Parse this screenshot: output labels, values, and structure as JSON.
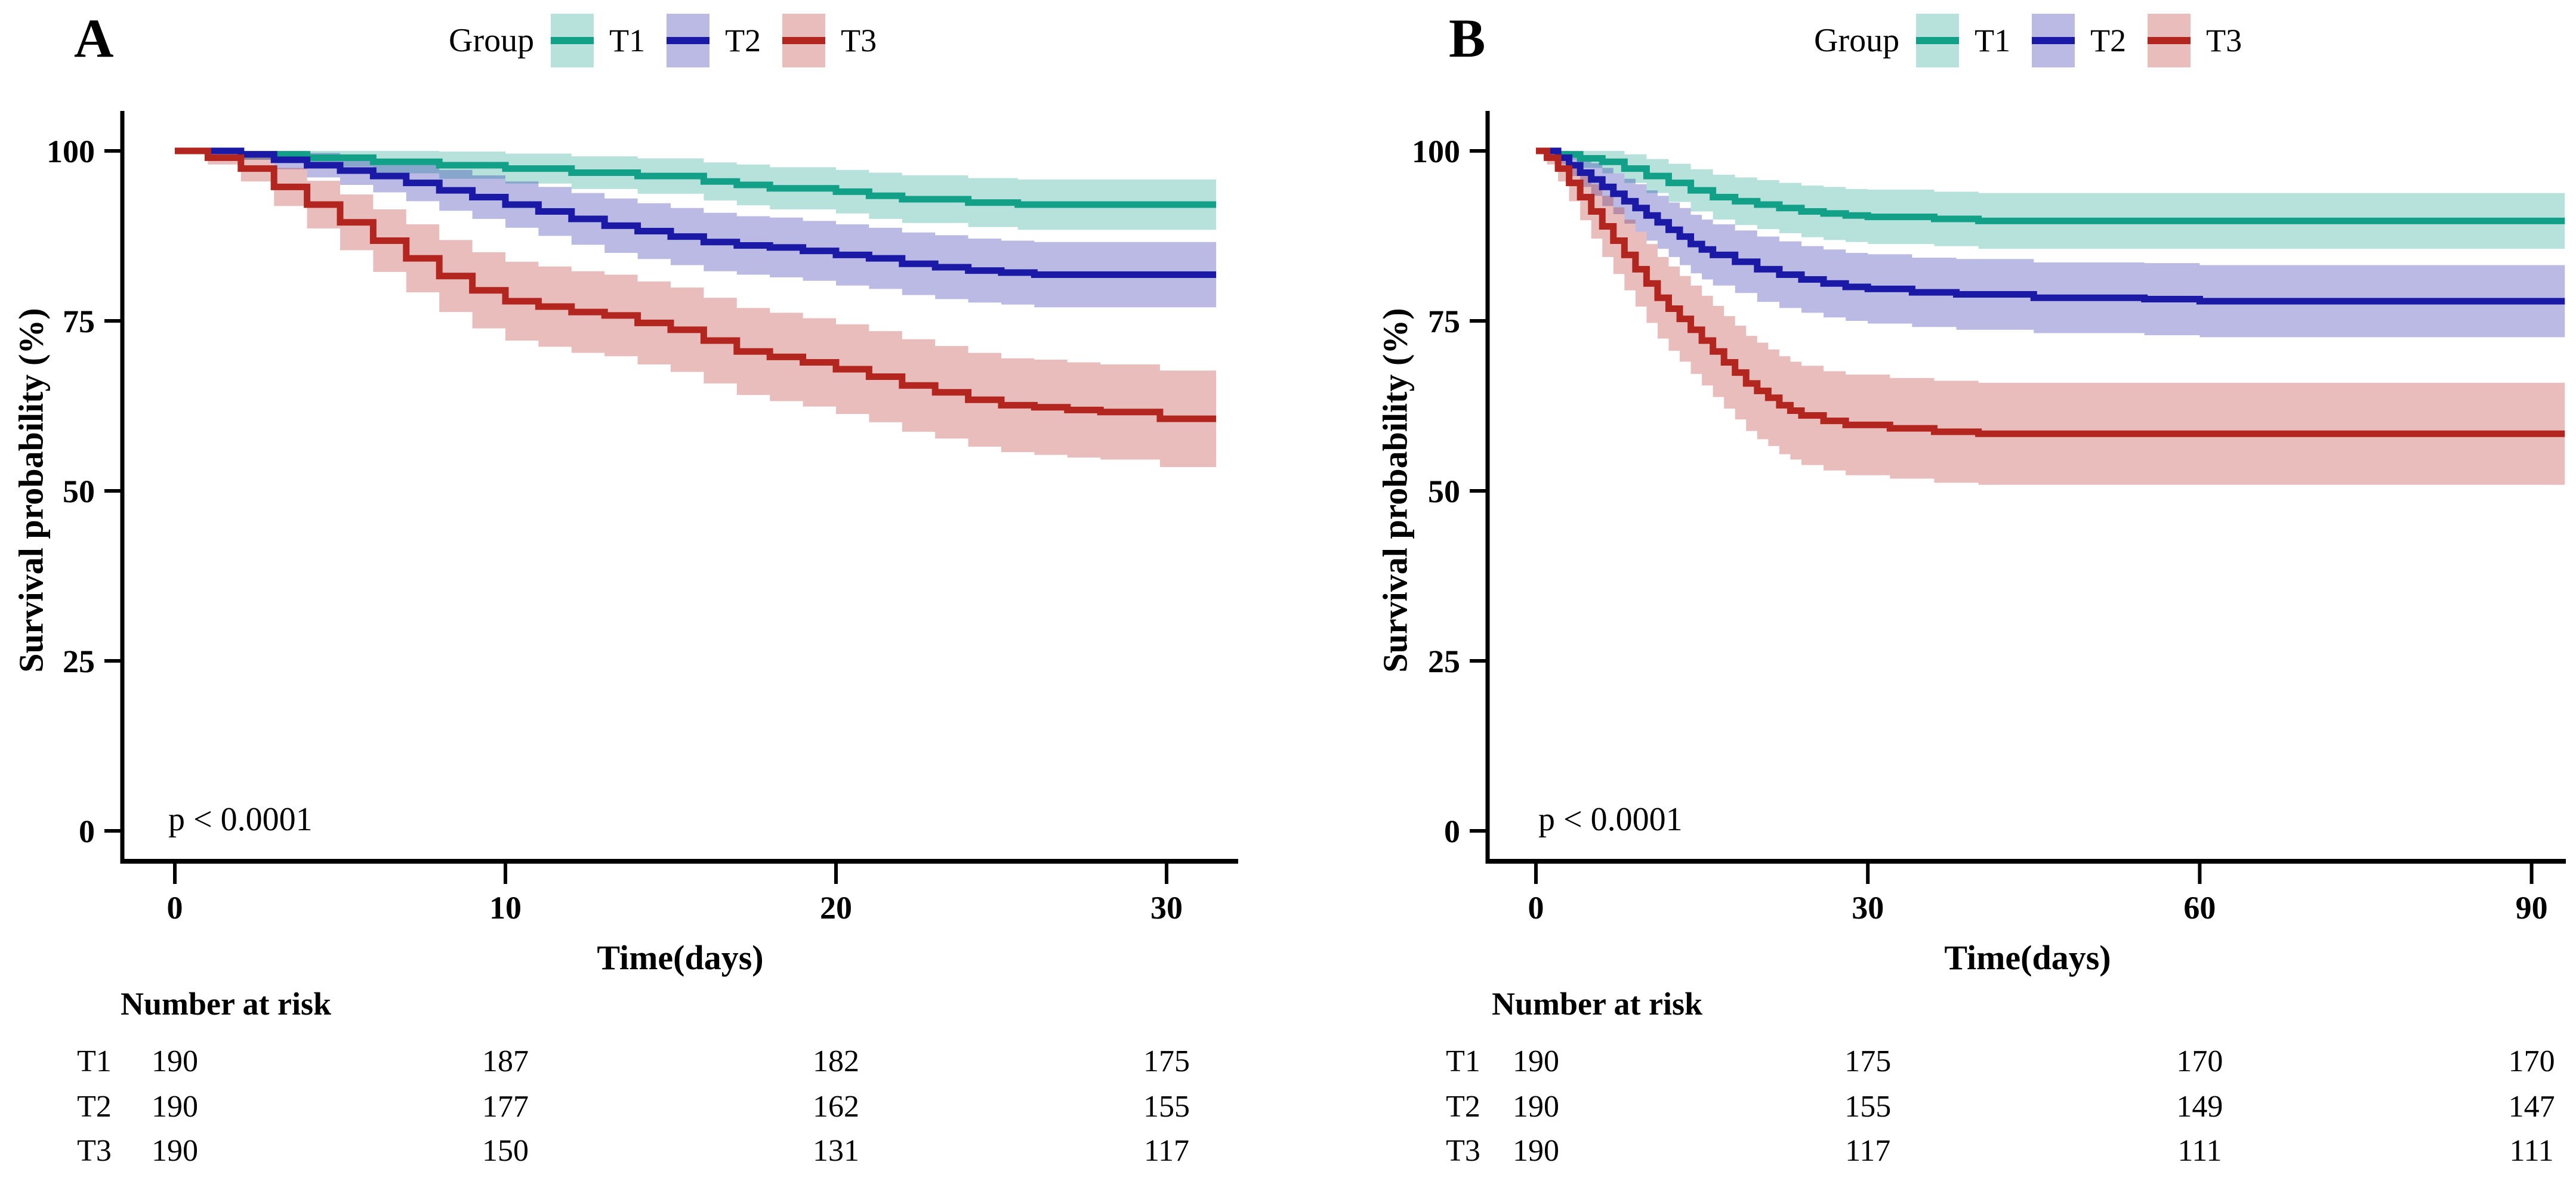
{
  "figure": {
    "background": "#ffffff",
    "axis_color": "#000000"
  },
  "chart_data": [
    {
      "panel": "A",
      "type": "line",
      "subtype": "kaplan-meier-step",
      "title": "A",
      "ylabel": "Survival probability (%)",
      "xlabel": "Time(days)",
      "p_text": "p < 0.0001",
      "x_ticks": [
        0,
        10,
        20,
        30
      ],
      "y_ticks": [
        100,
        75,
        50,
        25,
        0
      ],
      "xlim": [
        0,
        31.5
      ],
      "ylim": [
        0,
        100
      ],
      "grid": false,
      "legend": {
        "title": "Group",
        "position": "top",
        "items": [
          {
            "label": "T1",
            "color": "#12A089"
          },
          {
            "label": "T2",
            "color": "#1B1AA6"
          },
          {
            "label": "T3",
            "color": "#B3251F"
          }
        ]
      },
      "series": [
        {
          "name": "T1",
          "color": "#12A089",
          "ci_opacity": 0.3,
          "points": [
            [
              0,
              100,
              0
            ],
            [
              2,
              99.5,
              0.8
            ],
            [
              4,
              99,
              1.3
            ],
            [
              6,
              98.4,
              1.7
            ],
            [
              8,
              97.9,
              2
            ],
            [
              10,
              97.4,
              2.2
            ],
            [
              12,
              96.8,
              2.4
            ],
            [
              14,
              96.3,
              2.6
            ],
            [
              16,
              95.5,
              2.8
            ],
            [
              17,
              95,
              3
            ],
            [
              18,
              94.5,
              3.1
            ],
            [
              20,
              94,
              3.2
            ],
            [
              21,
              93.4,
              3.4
            ],
            [
              22,
              92.9,
              3.5
            ],
            [
              24,
              92.4,
              3.6
            ],
            [
              25.5,
              92.1,
              3.7
            ],
            [
              31.5,
              92.1,
              3.7
            ]
          ]
        },
        {
          "name": "T2",
          "color": "#1B1AA6",
          "ci_opacity": 0.3,
          "points": [
            [
              0,
              100,
              0
            ],
            [
              2,
              99.5,
              0.8
            ],
            [
              3,
              98.7,
              1.4
            ],
            [
              4,
              97.9,
              1.8
            ],
            [
              5,
              97.1,
              2.1
            ],
            [
              6,
              96.3,
              2.4
            ],
            [
              7,
              95.3,
              2.7
            ],
            [
              8,
              94.2,
              3
            ],
            [
              9,
              93.2,
              3.2
            ],
            [
              10,
              92.1,
              3.4
            ],
            [
              11,
              91.1,
              3.6
            ],
            [
              12,
              90,
              3.8
            ],
            [
              13,
              89,
              4
            ],
            [
              14,
              88.2,
              4.1
            ],
            [
              15,
              87.4,
              4.2
            ],
            [
              16,
              86.6,
              4.3
            ],
            [
              17,
              86.1,
              4.3
            ],
            [
              18,
              85.8,
              4.4
            ],
            [
              19,
              85.3,
              4.4
            ],
            [
              20,
              84.7,
              4.5
            ],
            [
              21,
              84.2,
              4.5
            ],
            [
              22,
              83.4,
              4.6
            ],
            [
              23,
              82.9,
              4.7
            ],
            [
              24,
              82.4,
              4.7
            ],
            [
              25,
              82.1,
              4.7
            ],
            [
              26,
              81.8,
              4.8
            ],
            [
              31.5,
              81.8,
              4.8
            ]
          ]
        },
        {
          "name": "T3",
          "color": "#B3251F",
          "ci_opacity": 0.3,
          "points": [
            [
              0,
              100,
              0
            ],
            [
              1,
              99,
              1
            ],
            [
              2,
              97.4,
              1.9
            ],
            [
              3,
              94.7,
              2.8
            ],
            [
              4,
              92.1,
              3.5
            ],
            [
              5,
              89.5,
              4.1
            ],
            [
              6,
              86.8,
              4.6
            ],
            [
              7,
              84.2,
              5
            ],
            [
              8,
              81.6,
              5.3
            ],
            [
              9,
              79.5,
              5.6
            ],
            [
              10,
              77.9,
              5.8
            ],
            [
              11,
              77.1,
              5.9
            ],
            [
              12,
              76.3,
              6
            ],
            [
              13,
              75.8,
              6
            ],
            [
              14,
              74.7,
              6.1
            ],
            [
              15,
              73.7,
              6.2
            ],
            [
              16,
              72.1,
              6.3
            ],
            [
              17,
              70.5,
              6.4
            ],
            [
              18,
              69.7,
              6.5
            ],
            [
              19,
              68.9,
              6.5
            ],
            [
              20,
              67.9,
              6.6
            ],
            [
              21,
              66.8,
              6.7
            ],
            [
              22,
              65.5,
              6.8
            ],
            [
              23,
              64.5,
              6.8
            ],
            [
              24,
              63.4,
              6.9
            ],
            [
              25,
              62.6,
              6.9
            ],
            [
              26,
              62.3,
              7
            ],
            [
              27,
              61.9,
              7
            ],
            [
              28,
              61.6,
              7
            ],
            [
              29.8,
              60.6,
              7.1
            ],
            [
              31.5,
              60.6,
              7.1
            ]
          ]
        }
      ],
      "risk_table": {
        "title": "Number at risk",
        "time_points": [
          0,
          10,
          20,
          30
        ],
        "rows": [
          {
            "label": "T1",
            "counts": [
              190,
              187,
              182,
              175
            ]
          },
          {
            "label": "T2",
            "counts": [
              190,
              177,
              162,
              155
            ]
          },
          {
            "label": "T3",
            "counts": [
              190,
              150,
              131,
              117
            ]
          }
        ]
      }
    },
    {
      "panel": "B",
      "type": "line",
      "subtype": "kaplan-meier-step",
      "title": "B",
      "ylabel": "Survival probability (%)",
      "xlabel": "Time(days)",
      "p_text": "p < 0.0001",
      "x_ticks": [
        0,
        30,
        60,
        90
      ],
      "y_ticks": [
        100,
        75,
        50,
        25,
        0
      ],
      "xlim": [
        0,
        93
      ],
      "ylim": [
        0,
        100
      ],
      "grid": false,
      "legend": {
        "title": "Group",
        "position": "top",
        "items": [
          {
            "label": "T1",
            "color": "#12A089"
          },
          {
            "label": "T2",
            "color": "#1B1AA6"
          },
          {
            "label": "T3",
            "color": "#B3251F"
          }
        ]
      },
      "series": [
        {
          "name": "T1",
          "color": "#12A089",
          "ci_opacity": 0.3,
          "points": [
            [
              0,
              100,
              0
            ],
            [
              2,
              99.5,
              0.8
            ],
            [
              4,
              98.9,
              1.4
            ],
            [
              6,
              98.4,
              1.7
            ],
            [
              8,
              97.4,
              2.1
            ],
            [
              10,
              96.3,
              2.5
            ],
            [
              12,
              95.3,
              2.8
            ],
            [
              14,
              94.2,
              3.1
            ],
            [
              16,
              93.2,
              3.3
            ],
            [
              18,
              92.6,
              3.5
            ],
            [
              20,
              92.1,
              3.6
            ],
            [
              22,
              91.6,
              3.7
            ],
            [
              24,
              91.1,
              3.8
            ],
            [
              26,
              90.8,
              3.9
            ],
            [
              28,
              90.5,
              3.9
            ],
            [
              30,
              90.3,
              4
            ],
            [
              36,
              90,
              4
            ],
            [
              40,
              89.7,
              4.1
            ],
            [
              93,
              89.7,
              4.1
            ]
          ]
        },
        {
          "name": "T2",
          "color": "#1B1AA6",
          "ci_opacity": 0.3,
          "points": [
            [
              0,
              100,
              0
            ],
            [
              2,
              99,
              1
            ],
            [
              3,
              97.9,
              1.6
            ],
            [
              4,
              96.8,
              2.1
            ],
            [
              5,
              95.8,
              2.4
            ],
            [
              6,
              94.7,
              2.8
            ],
            [
              7,
              93.7,
              3
            ],
            [
              8,
              92.6,
              3.3
            ],
            [
              9,
              91.6,
              3.5
            ],
            [
              10,
              90.5,
              3.7
            ],
            [
              11,
              89.5,
              3.9
            ],
            [
              12,
              88.4,
              4
            ],
            [
              13,
              87.4,
              4.2
            ],
            [
              14,
              86.3,
              4.3
            ],
            [
              15,
              85.5,
              4.4
            ],
            [
              16,
              84.7,
              4.5
            ],
            [
              18,
              83.7,
              4.6
            ],
            [
              20,
              82.6,
              4.8
            ],
            [
              22,
              81.8,
              4.9
            ],
            [
              24,
              81.1,
              4.9
            ],
            [
              26,
              80.5,
              5
            ],
            [
              28,
              80,
              5
            ],
            [
              30,
              79.7,
              5.1
            ],
            [
              34,
              79.2,
              5.1
            ],
            [
              38,
              78.9,
              5.2
            ],
            [
              45,
              78.4,
              5.2
            ],
            [
              55,
              78.2,
              5.3
            ],
            [
              60,
              77.9,
              5.3
            ],
            [
              93,
              77.9,
              5.3
            ]
          ]
        },
        {
          "name": "T3",
          "color": "#B3251F",
          "ci_opacity": 0.3,
          "points": [
            [
              0,
              100,
              0
            ],
            [
              1,
              99,
              1
            ],
            [
              2,
              97.4,
              1.9
            ],
            [
              3,
              95.3,
              2.7
            ],
            [
              4,
              93.2,
              3.4
            ],
            [
              5,
              91.1,
              4
            ],
            [
              6,
              88.9,
              4.5
            ],
            [
              7,
              86.8,
              4.9
            ],
            [
              8,
              84.7,
              5.2
            ],
            [
              9,
              82.6,
              5.5
            ],
            [
              10,
              80.5,
              5.8
            ],
            [
              11,
              78.4,
              6
            ],
            [
              12,
              76.8,
              6.2
            ],
            [
              13,
              75.3,
              6.3
            ],
            [
              14,
              73.7,
              6.5
            ],
            [
              15,
              72.1,
              6.6
            ],
            [
              16,
              70.5,
              6.7
            ],
            [
              17,
              68.9,
              6.8
            ],
            [
              18,
              67.4,
              6.9
            ],
            [
              19,
              65.8,
              7
            ],
            [
              20,
              64.7,
              7.1
            ],
            [
              21,
              63.7,
              7.1
            ],
            [
              22,
              62.6,
              7.2
            ],
            [
              23,
              61.8,
              7.2
            ],
            [
              24,
              61.1,
              7.3
            ],
            [
              26,
              60.3,
              7.3
            ],
            [
              28,
              59.7,
              7.4
            ],
            [
              32,
              59.2,
              7.4
            ],
            [
              36,
              58.7,
              7.5
            ],
            [
              40,
              58.4,
              7.5
            ],
            [
              93,
              58.4,
              7.5
            ]
          ]
        }
      ],
      "risk_table": {
        "title": "Number at risk",
        "time_points": [
          0,
          30,
          60,
          90
        ],
        "rows": [
          {
            "label": "T1",
            "counts": [
              190,
              175,
              170,
              170
            ]
          },
          {
            "label": "T2",
            "counts": [
              190,
              155,
              149,
              147
            ]
          },
          {
            "label": "T3",
            "counts": [
              190,
              117,
              111,
              111
            ]
          }
        ]
      }
    }
  ]
}
